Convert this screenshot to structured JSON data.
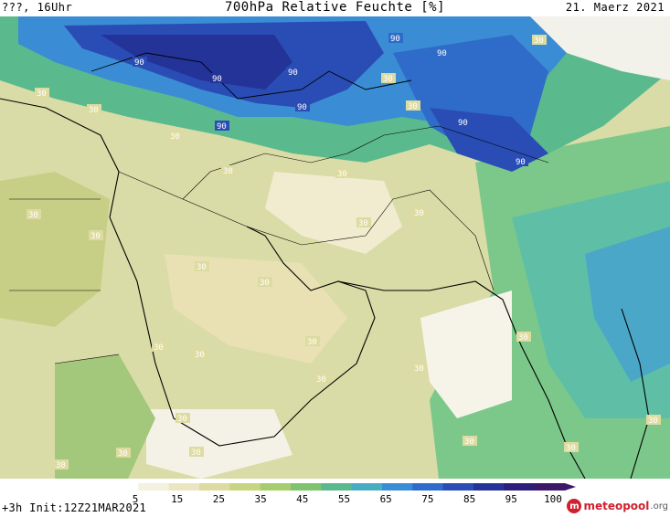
{
  "header": {
    "left": "???, 16Uhr",
    "title": "700hPa Relative Feuchte [%]",
    "date": "21. Maerz 2021"
  },
  "colorbar": {
    "labels": [
      "5",
      "15",
      "25",
      "35",
      "45",
      "55",
      "65",
      "75",
      "85",
      "95",
      "100"
    ],
    "colors": [
      "#ffffff",
      "#f4f1e0",
      "#ece5c2",
      "#dedba0",
      "#c8d47f",
      "#a6cc6e",
      "#7fc36e",
      "#5bb98e",
      "#48acc2",
      "#3a8dd4",
      "#2f6bc8",
      "#2a4db5",
      "#243398",
      "#2b1f7a",
      "#3b1868"
    ]
  },
  "contour_labels": {
    "high": "90",
    "low": "30"
  },
  "footer": {
    "run": "+3h  Init:12Z21MAR2021",
    "logo_main": "meteopool",
    "logo_suffix": ".org"
  }
}
